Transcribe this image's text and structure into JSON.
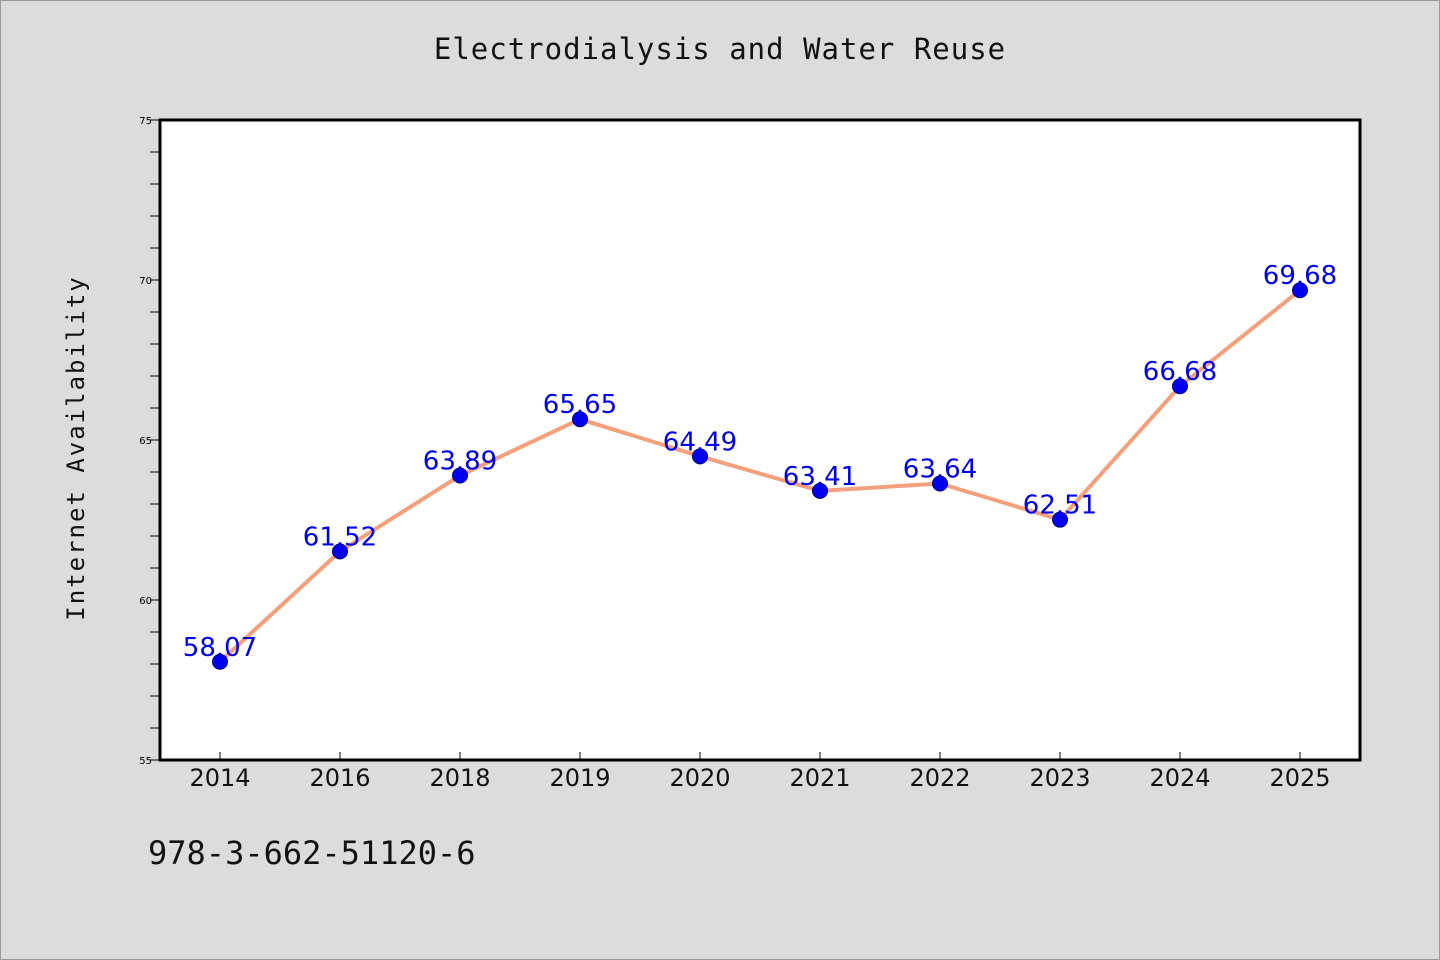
{
  "chart_data": {
    "type": "line",
    "title": "Electrodialysis and Water Reuse",
    "xlabel": "",
    "ylabel": "Internet Availability",
    "categories": [
      "2014",
      "2016",
      "2018",
      "2019",
      "2020",
      "2021",
      "2022",
      "2023",
      "2024",
      "2025"
    ],
    "series": [
      {
        "values": [
          58.07,
          61.52,
          63.89,
          65.65,
          64.49,
          63.41,
          63.64,
          62.51,
          66.68,
          69.68
        ]
      }
    ],
    "data_labels": [
      "58.07",
      "61.52",
      "63.89",
      "65.65",
      "64.49",
      "63.41",
      "63.64",
      "62.51",
      "66.68",
      "69.68"
    ],
    "ylim": [
      55,
      75
    ],
    "yticks": [
      55,
      60,
      65,
      70,
      75
    ],
    "grid": false,
    "colors": {
      "line": "#f4a07c",
      "marker": "#0000ee",
      "label": "#0000ee",
      "background": "#dcdcdc",
      "plot_background": "#ffffff"
    }
  },
  "footer": {
    "isbn": "978-3-662-51120-6"
  }
}
